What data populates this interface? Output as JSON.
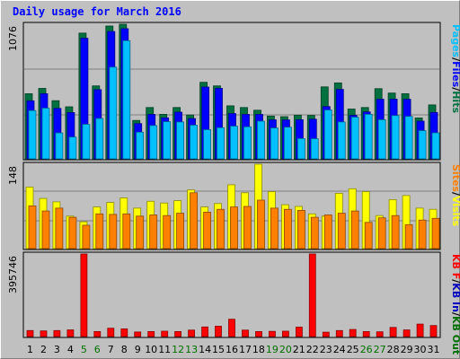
{
  "title": "Daily usage for March 2016",
  "colors": {
    "hits": "#007040",
    "files": "#0000ff",
    "pages": "#00c0ff",
    "visits": "#ffff00",
    "sites": "#ff8000",
    "kbf": "#ff0000",
    "kbin": "#0000c0",
    "kbout": "#007000",
    "weekend": "#007000",
    "weekday": "#000000"
  },
  "chart_data": [
    {
      "type": "bar",
      "panel": "top",
      "max_label": "1076",
      "ylim": [
        0,
        1076
      ],
      "right_label": [
        "Pages",
        "Files",
        "Hits"
      ],
      "categories": [
        1,
        2,
        3,
        4,
        5,
        6,
        7,
        8,
        9,
        10,
        11,
        12,
        13,
        14,
        15,
        16,
        17,
        18,
        19,
        20,
        21,
        22,
        23,
        24,
        25,
        26,
        27,
        28,
        29,
        30,
        31
      ],
      "series": [
        {
          "name": "Hits",
          "values": [
            521,
            563,
            465,
            416,
            1005,
            583,
            1062,
            1076,
            307,
            410,
            356,
            410,
            351,
            612,
            583,
            424,
            410,
            389,
            342,
            337,
            349,
            347,
            575,
            607,
            398,
            410,
            561,
            526,
            521,
            327,
            431
          ]
        },
        {
          "name": "Files",
          "values": [
            464,
            521,
            403,
            370,
            964,
            553,
            1018,
            1040,
            282,
            355,
            328,
            373,
            322,
            574,
            564,
            362,
            355,
            355,
            312,
            311,
            313,
            317,
            418,
            555,
            348,
            375,
            476,
            477,
            476,
            301,
            371
          ]
        },
        {
          "name": "Pages",
          "values": [
            386,
            405,
            207,
            174,
            276,
            323,
            733,
            945,
            213,
            266,
            297,
            295,
            269,
            233,
            249,
            261,
            256,
            301,
            247,
            253,
            162,
            161,
            390,
            295,
            333,
            356,
            313,
            346,
            339,
            225,
            208
          ]
        }
      ]
    },
    {
      "type": "bar",
      "panel": "middle",
      "max_label": "148",
      "ylim": [
        0,
        148
      ],
      "right_label": [
        "Sites",
        "Visits"
      ],
      "categories": [
        1,
        2,
        3,
        4,
        5,
        6,
        7,
        8,
        9,
        10,
        11,
        12,
        13,
        14,
        15,
        16,
        17,
        18,
        19,
        20,
        21,
        22,
        23,
        24,
        25,
        26,
        27,
        28,
        29,
        30,
        31
      ],
      "series": [
        {
          "name": "Visits",
          "values": [
            108,
            88,
            82,
            57,
            47,
            73,
            81,
            89,
            71,
            83,
            80,
            84,
            103,
            73,
            79,
            112,
            98,
            148,
            100,
            77,
            74,
            61,
            57,
            97,
            105,
            100,
            58,
            86,
            93,
            71,
            69
          ]
        },
        {
          "name": "Sites",
          "values": [
            75,
            66,
            71,
            55,
            41,
            61,
            60,
            61,
            57,
            59,
            58,
            62,
            98,
            64,
            69,
            73,
            74,
            85,
            71,
            69,
            67,
            55,
            59,
            62,
            66,
            46,
            54,
            58,
            42,
            50,
            53
          ]
        }
      ]
    },
    {
      "type": "bar",
      "panel": "bottom",
      "max_label": "395746",
      "ylim": [
        0,
        395746
      ],
      "right_label": [
        "KB F",
        "KB In",
        "KB Out"
      ],
      "categories": [
        1,
        2,
        3,
        4,
        5,
        6,
        7,
        8,
        9,
        10,
        11,
        12,
        13,
        14,
        15,
        16,
        17,
        18,
        19,
        20,
        21,
        22,
        23,
        24,
        25,
        26,
        27,
        28,
        29,
        30,
        31
      ],
      "series": [
        {
          "name": "KB F",
          "values": [
            29000,
            27000,
            29000,
            32000,
            395746,
            24000,
            40000,
            37000,
            22000,
            24000,
            26000,
            24000,
            31000,
            46000,
            50000,
            83000,
            31000,
            24000,
            25000,
            26000,
            45000,
            395746,
            21000,
            29000,
            34000,
            24000,
            23000,
            44000,
            32000,
            60000,
            53000
          ]
        }
      ]
    }
  ],
  "x_labels": [
    "1",
    "2",
    "3",
    "4",
    "5",
    "6",
    "7",
    "8",
    "9",
    "10",
    "11",
    "12",
    "13",
    "14",
    "15",
    "16",
    "17",
    "18",
    "19",
    "20",
    "21",
    "22",
    "23",
    "24",
    "25",
    "26",
    "27",
    "28",
    "29",
    "30",
    "31"
  ],
  "weekend_days": [
    5,
    6,
    12,
    13,
    19,
    20,
    26,
    27
  ]
}
